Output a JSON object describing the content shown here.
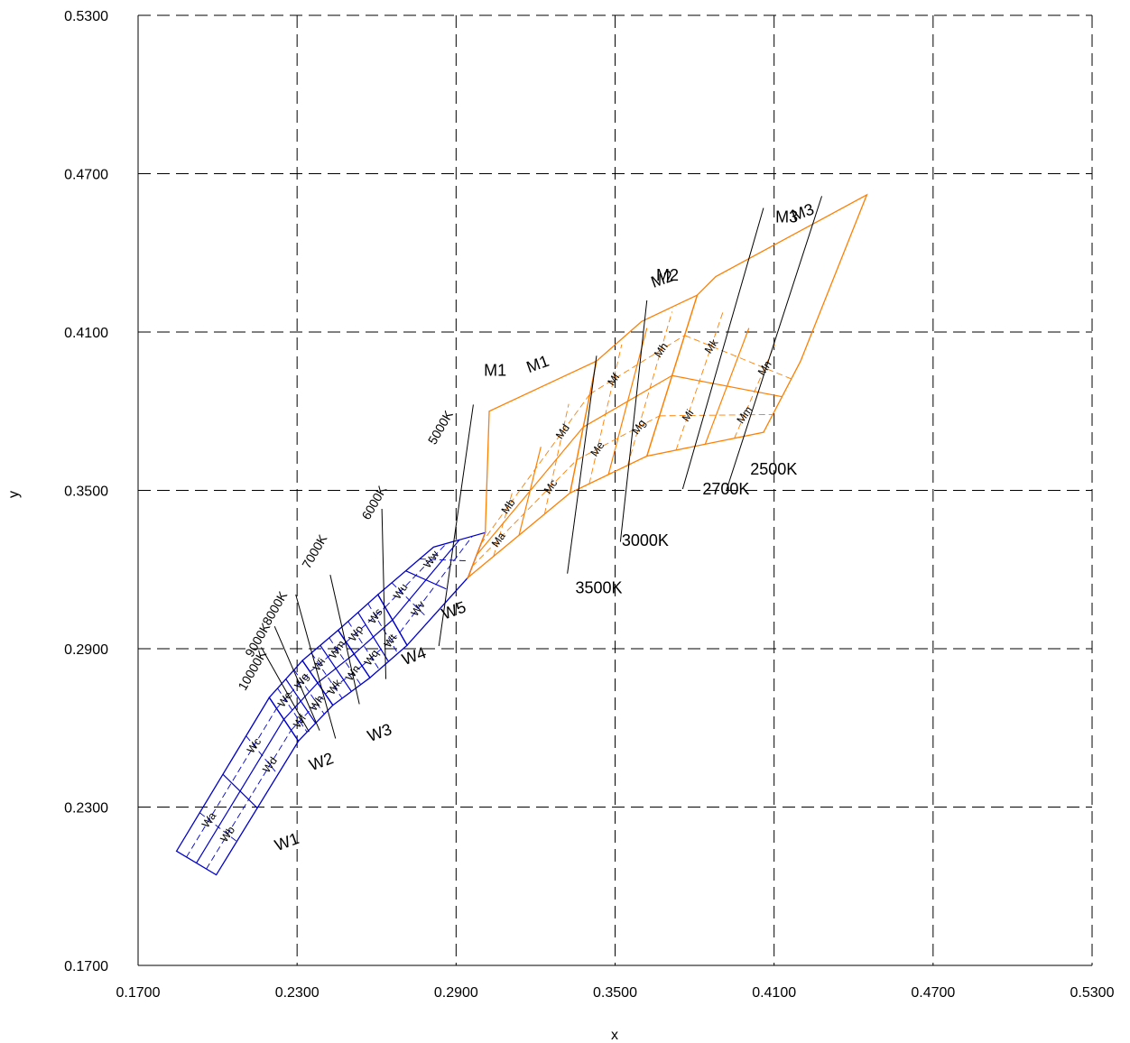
{
  "chart_data": {
    "type": "scatter",
    "title": "",
    "xlabel": "x",
    "ylabel": "y",
    "xlim": [
      0.17,
      0.53
    ],
    "ylim": [
      0.17,
      0.53
    ],
    "grid": "dashed",
    "x_ticks": [
      "0.1700",
      "0.2300",
      "0.2900",
      "0.3500",
      "0.4100",
      "0.4700",
      "0.5300"
    ],
    "y_ticks": [
      "0.1700",
      "0.2300",
      "0.2900",
      "0.3500",
      "0.4100",
      "0.4700",
      "0.5300"
    ],
    "colors": {
      "white_bins": "#0000cc",
      "multi_bins": "#ff7f00",
      "lines": "#000000",
      "grid": "#000000"
    },
    "series": [
      {
        "group": "W",
        "regions": [
          {
            "name": "W1",
            "label_at": [
              0.2225,
              0.2133
            ],
            "boundary": [
              [
                0.1845,
                0.2133
              ],
              [
                0.1995,
                0.2043
              ],
              [
                0.2305,
                0.255
              ],
              [
                0.2195,
                0.2715
              ]
            ]
          },
          {
            "name": "W2",
            "label_at": [
              0.2355,
              0.2437
            ],
            "boundary": [
              [
                0.2195,
                0.2715
              ],
              [
                0.2305,
                0.255
              ],
              [
                0.2435,
                0.2686
              ],
              [
                0.232,
                0.2855
              ]
            ]
          },
          {
            "name": "W3",
            "label_at": [
              0.2575,
              0.2547
            ],
            "boundary": [
              [
                0.232,
                0.2855
              ],
              [
                0.2435,
                0.2686
              ],
              [
                0.2575,
                0.279
              ],
              [
                0.2455,
                0.297
              ]
            ]
          },
          {
            "name": "W4",
            "label_at": [
              0.2705,
              0.2837
            ],
            "boundary": [
              [
                0.2455,
                0.297
              ],
              [
                0.2575,
                0.279
              ],
              [
                0.2715,
                0.2913
              ],
              [
                0.2605,
                0.3105
              ]
            ]
          },
          {
            "name": "W5",
            "label_at": [
              0.2855,
              0.301
            ],
            "boundary": [
              [
                0.2605,
                0.3105
              ],
              [
                0.2715,
                0.2913
              ],
              [
                0.2945,
                0.317
              ],
              [
                0.301,
                0.334
              ],
              [
                0.2815,
                0.3285
              ]
            ]
          }
        ],
        "bins": [
          "Wa",
          "Wb",
          "Wc",
          "Wd",
          "We",
          "Wf",
          "Wg",
          "Wh",
          "Wi",
          "Wk",
          "Wm",
          "Wn",
          "Wp",
          "Wq",
          "Ws",
          "Wt",
          "Wu",
          "Wv",
          "Ww"
        ]
      },
      {
        "group": "M",
        "regions": [
          {
            "name": "M1",
            "label_at": [
              0.3175,
              0.3945
            ],
            "boundary": [
              [
                0.2945,
                0.317
              ],
              [
                0.301,
                0.334
              ],
              [
                0.3025,
                0.38
              ],
              [
                0.343,
                0.399
              ],
              [
                0.333,
                0.349
              ]
            ]
          },
          {
            "name": "M2",
            "label_at": [
              0.3645,
              0.4267
            ],
            "boundary": [
              [
                0.333,
                0.349
              ],
              [
                0.343,
                0.399
              ],
              [
                0.36,
                0.414
              ],
              [
                0.381,
                0.424
              ],
              [
                0.362,
                0.363
              ]
            ]
          },
          {
            "name": "M3",
            "label_at": [
              0.4175,
              0.452
            ],
            "boundary": [
              [
                0.362,
                0.363
              ],
              [
                0.381,
                0.424
              ],
              [
                0.388,
                0.431
              ],
              [
                0.445,
                0.462
              ],
              [
                0.42,
                0.399
              ],
              [
                0.406,
                0.372
              ]
            ]
          }
        ],
        "bins": [
          "Ma",
          "Mb",
          "Mc",
          "Md",
          "Me",
          "Mf",
          "Mg",
          "Mh",
          "Mi",
          "Mk",
          "Mm",
          "Mn"
        ]
      }
    ],
    "cct_lines": [
      {
        "label": "10000K",
        "label_at": [
          0.2145,
          0.281
        ],
        "line": [
          [
            0.2165,
            0.2905
          ],
          [
            0.2345,
            0.2585
          ]
        ]
      },
      {
        "label": "9000K",
        "label_at": [
          0.2165,
          0.2925
        ],
        "line": [
          [
            0.2215,
            0.2985
          ],
          [
            0.2385,
            0.259
          ]
        ]
      },
      {
        "label": "8000K",
        "label_at": [
          0.223,
          0.3045
        ],
        "line": [
          [
            0.2295,
            0.3105
          ],
          [
            0.2445,
            0.256
          ]
        ]
      },
      {
        "label": "7000K",
        "label_at": [
          0.238,
          0.326
        ],
        "line": [
          [
            0.2425,
            0.318
          ],
          [
            0.2535,
            0.269
          ]
        ]
      },
      {
        "label": "6000K",
        "label_at": [
          0.2605,
          0.3445
        ],
        "line": [
          [
            0.262,
            0.343
          ],
          [
            0.2635,
            0.2785
          ]
        ]
      },
      {
        "label": "5000K",
        "label_at": [
          0.2855,
          0.373
        ],
        "line": [
          [
            0.2965,
            0.3825
          ],
          [
            0.2835,
            0.291
          ]
        ]
      },
      {
        "label": "3500K",
        "label_at": [
          0.335,
          0.311
        ],
        "line": [
          [
            0.343,
            0.401
          ],
          [
            0.332,
            0.3185
          ]
        ]
      },
      {
        "label": "3000K",
        "label_at": [
          0.3525,
          0.329
        ],
        "line": [
          [
            0.362,
            0.422
          ],
          [
            0.352,
            0.3305
          ]
        ]
      },
      {
        "label": "2700K",
        "label_at": [
          0.383,
          0.3485
        ],
        "line": [
          [
            0.406,
            0.457
          ],
          [
            0.3755,
            0.3505
          ]
        ]
      },
      {
        "label": "2500K",
        "label_at": [
          0.401,
          0.356
        ],
        "line": [
          [
            0.428,
            0.4615
          ],
          [
            0.392,
            0.35
          ]
        ]
      },
      {
        "label": "M1",
        "label_at": [
          0.3005,
          0.3935
        ],
        "line": []
      },
      {
        "label": "M2",
        "label_at": [
          0.3655,
          0.4295
        ],
        "line": []
      },
      {
        "label": "M3",
        "label_at": [
          0.4105,
          0.4515
        ],
        "line": []
      }
    ]
  }
}
